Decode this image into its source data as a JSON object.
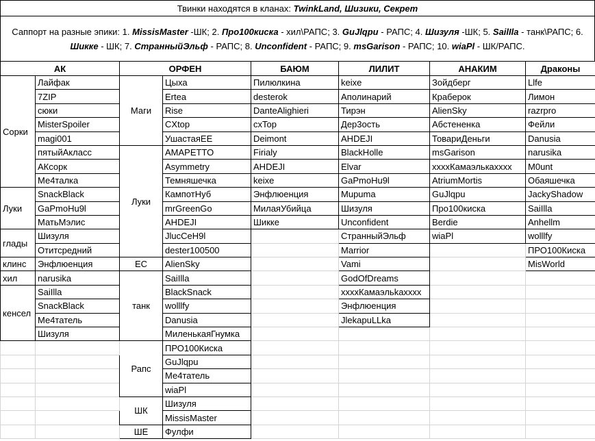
{
  "header": {
    "title": "Твинки находятся в кланах:",
    "clans": "TwinkLand, Шизики, Секрет"
  },
  "support": {
    "intro": "Саппорт на разные эпики:",
    "items": [
      {
        "number": "1.",
        "name": "MissisMaster",
        "role": "-ШК;"
      },
      {
        "number": "2.",
        "name": "Про100киска",
        "role": "- хил\\РАПС;"
      },
      {
        "number": "3.",
        "name": "GuJlqpu",
        "role": "- РАПС;"
      },
      {
        "number": "4.",
        "name": "Шизуля",
        "role": "-ШК;"
      },
      {
        "number": "5.",
        "name": "SailIla",
        "role": "- танк\\РАПС;"
      },
      {
        "number": "6.",
        "name": "Шикке",
        "role": "- ШК;"
      },
      {
        "number": "7.",
        "name": "СтранныйЭльф",
        "role": "- РАПС;"
      },
      {
        "number": "8.",
        "name": "Unconfident",
        "role": "- РАПС;"
      },
      {
        "number": "9.",
        "name": "msGarison",
        "role": "- РАПС;"
      },
      {
        "number": "10.",
        "name": "wiaPl",
        "role": "- ШК/РАПС."
      }
    ]
  },
  "table": {
    "columns": [
      {
        "header": "АК",
        "groups": [
          {
            "label": "Сорки",
            "names": [
              "Лайфак",
              "7ZIP",
              "сюки",
              "MisterSpoiler",
              "magi001",
              "пятыйАкласс",
              "АКсорк",
              "Ме4талка"
            ]
          },
          {
            "label": "Луки",
            "names": [
              "SnackBlack",
              "GaPmoHu9l",
              "МатьМэлис"
            ]
          },
          {
            "label": "глады",
            "names": [
              "Шизуля",
              "Отитсредний"
            ]
          },
          {
            "label": "клинс",
            "names": [
              "Энфлюенция"
            ]
          },
          {
            "label": "хил",
            "names": [
              "narusika"
            ]
          },
          {
            "label": "кенсел",
            "names": [
              "SaiIlla",
              "SnackBlack",
              "Ме4татель",
              "Шизуля"
            ]
          }
        ]
      },
      {
        "header": "ОРФЕН",
        "groups": [
          {
            "label": "Маги",
            "names": [
              "Цыха",
              "Ertea",
              "Rise",
              "CXtop",
              "УшастаяEE"
            ]
          },
          {
            "label": "Луки",
            "names": [
              "AMAPETTO",
              "Asymmetry",
              "Темняшечка",
              "КампотНуб",
              "mrGreenGo",
              "AHDEJI",
              "JlucCeH9l",
              "dester100500"
            ]
          },
          {
            "label": "ЕС",
            "names": [
              "AlienSky"
            ]
          },
          {
            "label": "танк",
            "names": [
              "SaiIlla",
              "BlackSnack",
              "wolllfy",
              "Danusia",
              "МиленькаяГнумка"
            ]
          },
          {
            "label": "Рапс",
            "names": [
              "ПРО100Киска",
              "GuJlqpu",
              "Ме4татель",
              "wiaPl"
            ]
          },
          {
            "label": "ШК",
            "names": [
              "Шизуля",
              "MissisMaster"
            ]
          },
          {
            "label": "ШЕ",
            "names": [
              "Фулфи"
            ]
          }
        ]
      },
      {
        "header": "БАЮМ",
        "names": [
          "Пилюлкина",
          "desterok",
          "DanteAlighieri",
          "cxTop",
          "Deimont",
          "Firialy",
          "AHDEJI",
          "keixe",
          "Энфлюенция",
          "МилаяУбийца",
          "Шикке"
        ]
      },
      {
        "header": "ЛИЛИТ",
        "names": [
          "keixe",
          "Аполинарий",
          "Тирэн",
          "Дер3ость",
          "AHDEJI",
          "BlackHolle",
          "Elvar",
          "GaPmoHu9l",
          "Mupuma",
          "Шизуля",
          "Unconfident",
          "СтранныйЭльф",
          "Marrior",
          "Vami",
          "GodOfDreams",
          "xxxxКамаэльkaxxxx",
          "Энфлюенция",
          "JlekapuLLka"
        ]
      },
      {
        "header": "АНАКИМ",
        "names": [
          "Зойдберг",
          "Краберок",
          "AlienSky",
          "Абстененка",
          "ТовариДеньги",
          "msGarison",
          "xxxxКамаэлькaxxxx",
          "AtriumMortis",
          "GuJlqpu",
          "Про100киска",
          "Berdie",
          "wiaPl"
        ]
      },
      {
        "header": "Драконы",
        "names": [
          "Llfe",
          "Лимон",
          "razrpro",
          "Фейли",
          "Danusia",
          "narusika",
          "M0unt",
          "Обаяшечка",
          "JackyShadow",
          "SaiIlla",
          "Anhellm",
          "wolllfy",
          "ПРО100Киска",
          "MisWorld"
        ]
      }
    ]
  }
}
